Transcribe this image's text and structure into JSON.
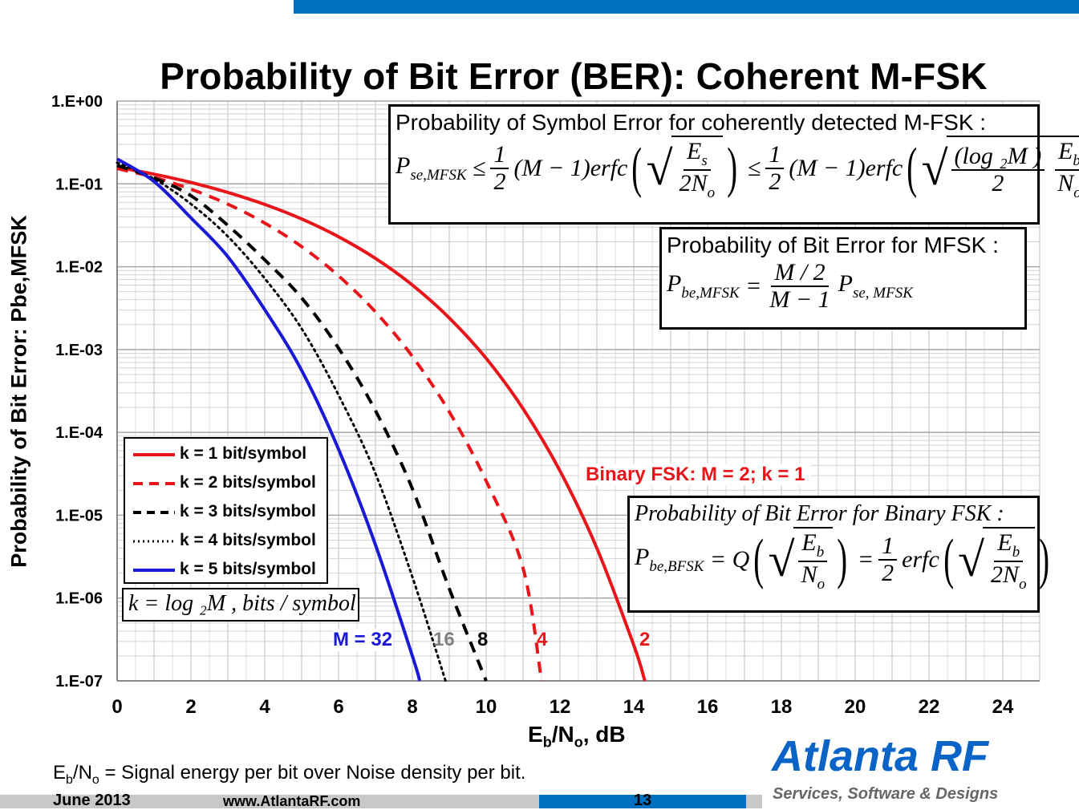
{
  "slide": {
    "title": "Probability of Bit Error (BER): Coherent M-FSK",
    "footnote_pre": "E",
    "footnote_sub1": "b",
    "footnote_mid": "/N",
    "footnote_sub2": "o",
    "footnote_post": " = Signal energy per bit over Noise density per bit.",
    "brand": "Atlanta RF",
    "tagline": "Services, Software & Designs",
    "footer_date": "June 2013",
    "footer_url": "www.AtlantaRF.com",
    "footer_page": "13",
    "colors": {
      "blue_bar": "#0070c0",
      "brand_blue": "#0a64c8"
    }
  },
  "chart_data": {
    "type": "line",
    "title": "Probability of Bit Error (BER): Coherent M-FSK",
    "xlabel_main": "E",
    "xlabel_sub1": "b",
    "xlabel_mid": "/N",
    "xlabel_sub2": "o",
    "xlabel_post": ", dB",
    "ylabel": "Probability of Bit Error: Pbe,MFSK",
    "xlim": [
      0,
      25
    ],
    "ylim": [
      1e-07,
      1
    ],
    "y_scale": "log",
    "grid": true,
    "x_ticks": [
      0,
      2,
      4,
      6,
      8,
      10,
      12,
      14,
      16,
      18,
      20,
      22,
      24
    ],
    "y_ticks": [
      {
        "value": 1,
        "label": "1.E+00"
      },
      {
        "value": 0.1,
        "label": "1.E-01"
      },
      {
        "value": 0.01,
        "label": "1.E-02"
      },
      {
        "value": 0.001,
        "label": "1.E-03"
      },
      {
        "value": 0.0001,
        "label": "1.E-04"
      },
      {
        "value": 1e-05,
        "label": "1.E-05"
      },
      {
        "value": 1e-06,
        "label": "1.E-06"
      },
      {
        "value": 1e-07,
        "label": "1.E-07"
      }
    ],
    "legend_position": "left",
    "series": [
      {
        "name": "k = 1 bit/symbol",
        "color": "#e8161a",
        "dash": "solid",
        "curve_label": "2",
        "x": [
          0,
          1,
          2,
          3,
          4,
          5,
          6,
          7,
          8,
          9,
          10,
          11,
          12,
          13,
          14,
          14.3
        ],
        "y": [
          0.159,
          0.131,
          0.104,
          0.0789,
          0.0565,
          0.0377,
          0.023,
          0.0126,
          0.00601,
          0.00241,
          0.000783,
          0.000193,
          3.43e-05,
          4e-06,
          2.7e-07,
          1e-07
        ]
      },
      {
        "name": "k = 2 bits/symbol",
        "color": "#e8161a",
        "dash": "dashed",
        "curve_label": "4",
        "x": [
          0,
          1,
          2,
          3,
          4,
          5,
          6,
          7,
          8,
          9,
          10,
          11,
          11.5
        ],
        "y": [
          0.153,
          0.12,
          0.0863,
          0.0569,
          0.0337,
          0.0175,
          0.00777,
          0.00285,
          0.000826,
          0.000177,
          2.59e-05,
          2.3e-06,
          1e-07
        ]
      },
      {
        "name": "k = 3 bits/symbol",
        "color": "#000000",
        "dash": "dashed",
        "curve_label": "8",
        "x": [
          0,
          1,
          2,
          3,
          4,
          5,
          6,
          7,
          8,
          9,
          10
        ],
        "y": [
          0.167,
          0.118,
          0.072,
          0.0316,
          0.0121,
          0.0042,
          0.00104,
          0.000183,
          2.09e-05,
          1.3e-06,
          1e-07
        ]
      },
      {
        "name": "k = 4 bits/symbol",
        "color": "#000000",
        "dash": "dotted",
        "curve_label": "16",
        "x": [
          0,
          1,
          2,
          3,
          4,
          5,
          6,
          7,
          8,
          8.9
        ],
        "y": [
          0.18,
          0.115,
          0.0572,
          0.0232,
          0.00722,
          0.00179,
          0.000282,
          3.19e-05,
          1.8e-06,
          1e-07
        ]
      },
      {
        "name": "k = 5 bits/symbol",
        "color": "#1a1ad6",
        "dash": "solid",
        "curve_label": "M = 32",
        "x": [
          0,
          1,
          2,
          3,
          4,
          5,
          6,
          7,
          8,
          8.2
        ],
        "y": [
          0.2,
          0.107,
          0.0389,
          0.0132,
          0.00303,
          0.000561,
          6.26e-05,
          4.4e-06,
          2e-07,
          1e-07
        ]
      }
    ],
    "annotation": "Binary FSK: M = 2; k = 1"
  },
  "formulas": {
    "symbol_error_title": "Probability of Symbol Error for coherently detected  M-FSK :",
    "bit_error_title": "Probability of Bit Error for MFSK :",
    "binary_title": "Probability of  Bit Error  for Binary FSK :",
    "k_def": "k = log ₂M , bits / symbol"
  }
}
